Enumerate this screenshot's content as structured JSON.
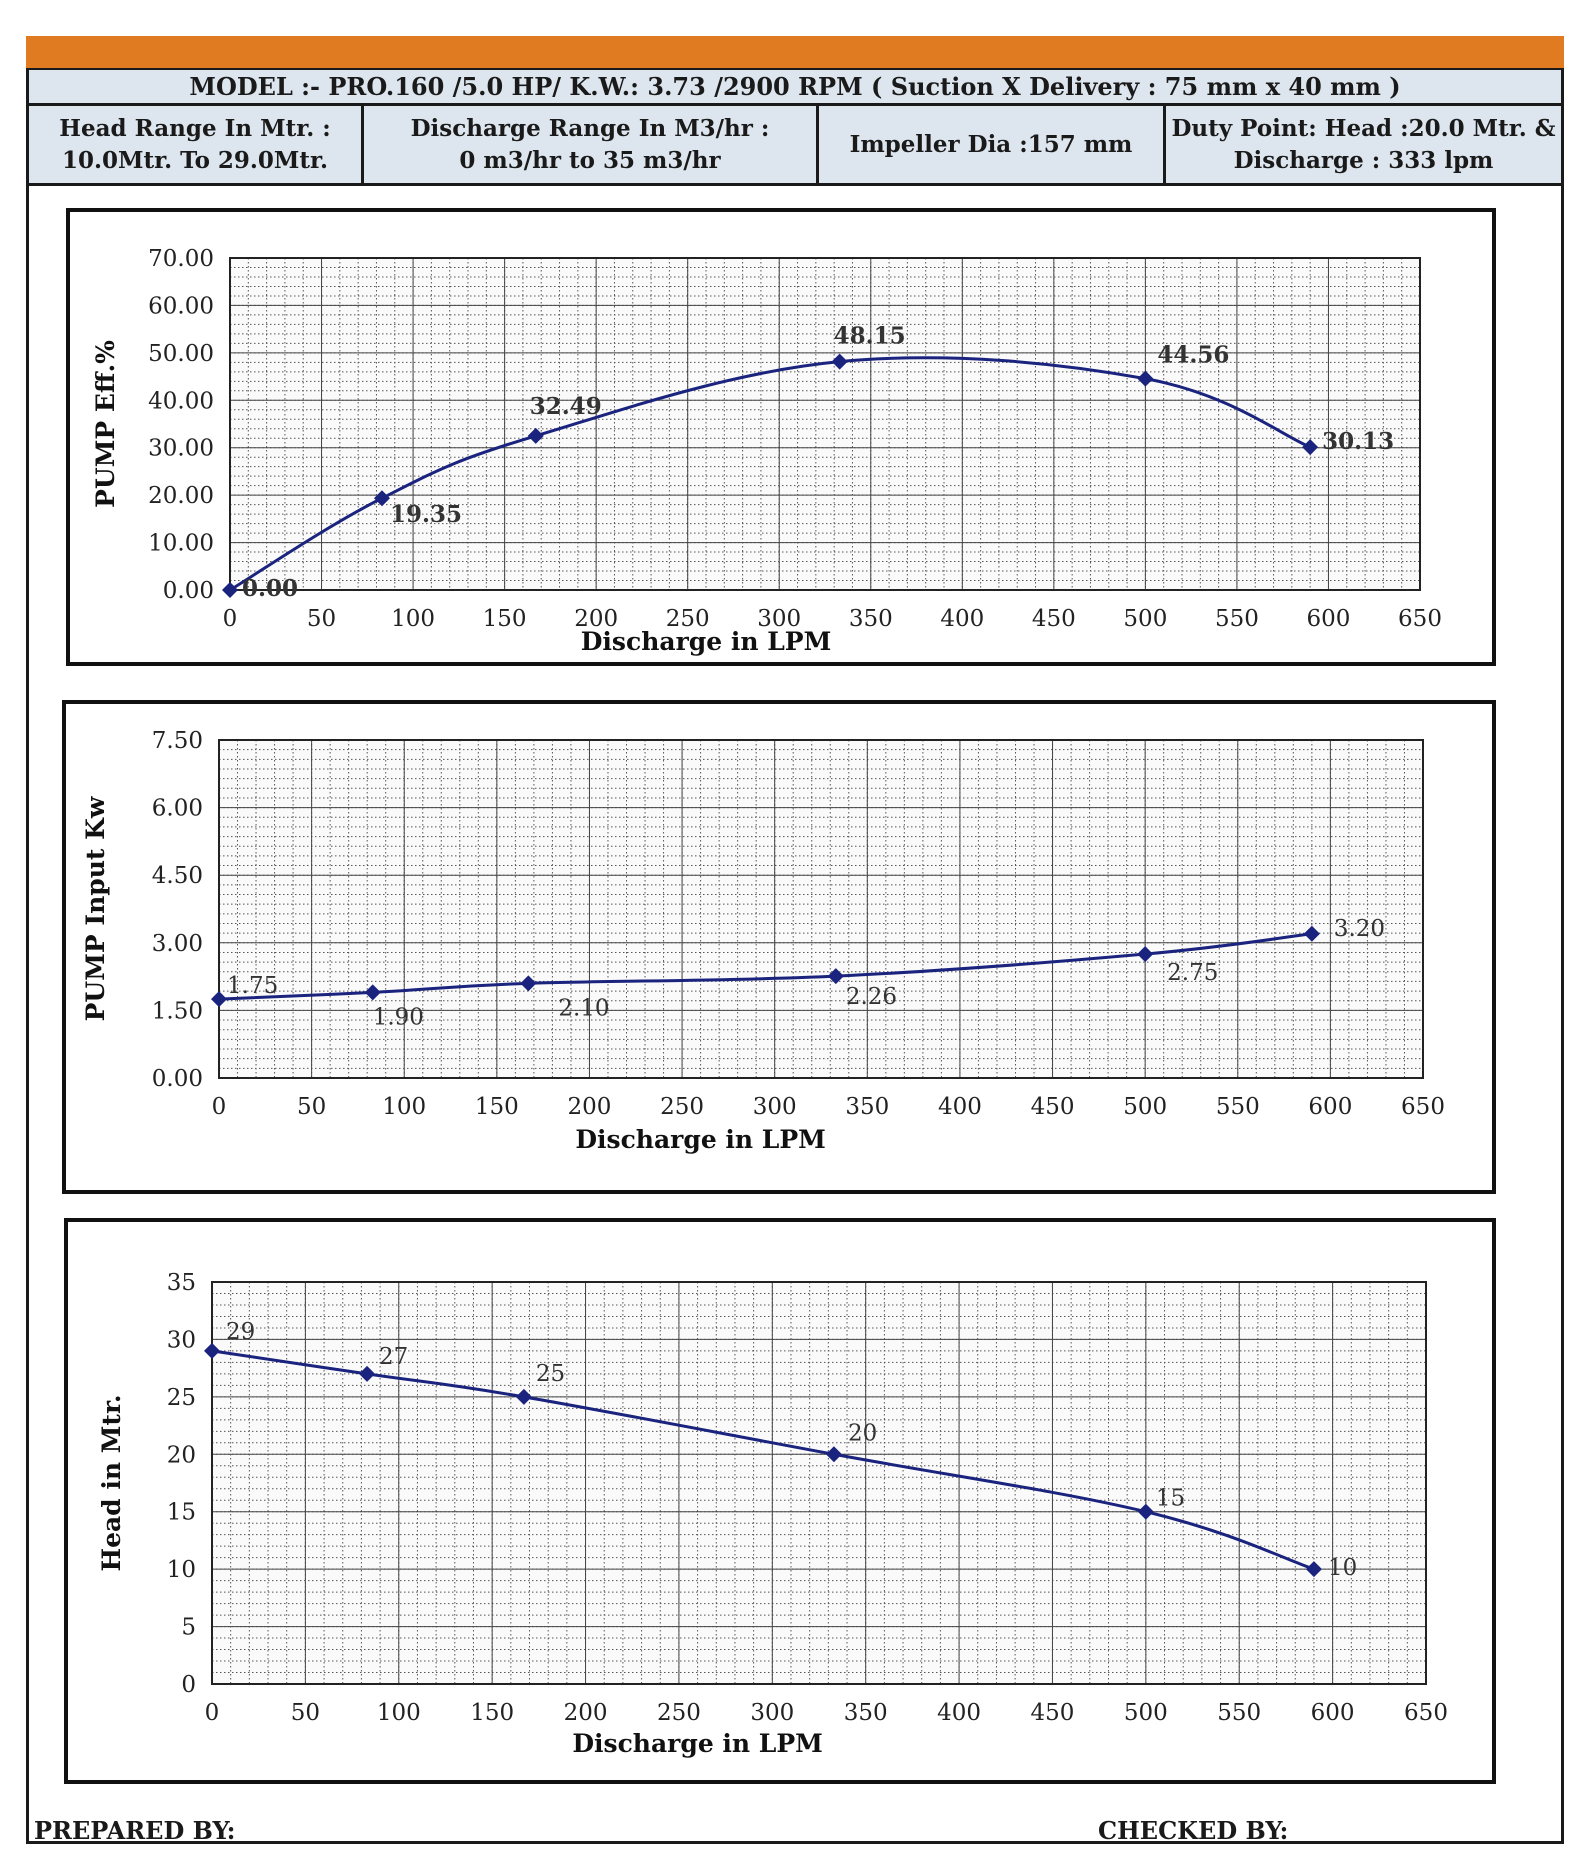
{
  "header": {
    "model_line": "MODEL :- PRO.160 /5.0 HP/ K.W.: 3.73 /2900 RPM (  Suction X Delivery : 75 mm x 40 mm )",
    "head_range_label": "Head Range In Mtr. :",
    "head_range_value": "10.0Mtr. To 29.0Mtr.",
    "discharge_range_label": "Discharge Range In M3/hr :",
    "discharge_range_value": "0 m3/hr to 35 m3/hr",
    "impeller": "Impeller Dia :157 mm",
    "duty_point_line1": "Duty Point: Head :20.0 Mtr. &",
    "duty_point_line2": "Discharge : 333 lpm",
    "accent_color": "#e07b21",
    "panel_color": "#dde6ee"
  },
  "footer": {
    "prepared_by": "PREPARED BY:",
    "checked_by": "CHECKED BY:"
  },
  "chart_data": [
    {
      "type": "line",
      "ylabel": "PUMP Eff.%",
      "xlabel": "Discharge in LPM",
      "x": [
        0,
        83,
        167,
        333,
        500,
        590
      ],
      "values": [
        0.0,
        19.35,
        32.49,
        48.15,
        44.56,
        30.13
      ],
      "data_labels": [
        "0.00",
        "19.35",
        "32.49",
        "48.15",
        "44.56",
        "30.13"
      ],
      "xlim": [
        0,
        650
      ],
      "ylim": [
        0,
        70
      ],
      "x_ticks": [
        "0",
        "50",
        "100",
        "150",
        "200",
        "250",
        "300",
        "350",
        "400",
        "450",
        "500",
        "550",
        "600",
        "650"
      ],
      "y_ticks": [
        "0.00",
        "10.00",
        "20.00",
        "30.00",
        "40.00",
        "50.00",
        "60.00",
        "70.00"
      ],
      "grid": true,
      "color": "#1a237e"
    },
    {
      "type": "line",
      "ylabel": "PUMP  Input Kw",
      "xlabel": "Discharge in LPM",
      "x": [
        0,
        83,
        167,
        333,
        500,
        590
      ],
      "values": [
        1.75,
        1.9,
        2.1,
        2.26,
        2.75,
        3.2
      ],
      "data_labels": [
        "1.75",
        "1.90",
        "2.10",
        "2.26",
        "2.75",
        "3.20"
      ],
      "xlim": [
        0,
        650
      ],
      "ylim": [
        0,
        7.5
      ],
      "x_ticks": [
        "0",
        "50",
        "100",
        "150",
        "200",
        "250",
        "300",
        "350",
        "400",
        "450",
        "500",
        "550",
        "600",
        "650"
      ],
      "y_ticks": [
        "0.00",
        "1.50",
        "3.00",
        "4.50",
        "6.00",
        "7.50"
      ],
      "grid": true,
      "color": "#1a237e"
    },
    {
      "type": "line",
      "ylabel": "Head in Mtr.",
      "xlabel": "Discharge in LPM",
      "x": [
        0,
        83,
        167,
        333,
        500,
        590
      ],
      "values": [
        29,
        27,
        25,
        20,
        15,
        10
      ],
      "data_labels": [
        "29",
        "27",
        "25",
        "20",
        "15",
        "10"
      ],
      "xlim": [
        0,
        650
      ],
      "ylim": [
        0,
        35
      ],
      "x_ticks": [
        "0",
        "50",
        "100",
        "150",
        "200",
        "250",
        "300",
        "350",
        "400",
        "450",
        "500",
        "550",
        "600",
        "650"
      ],
      "y_ticks": [
        "0",
        "5",
        "10",
        "15",
        "20",
        "25",
        "30",
        "35"
      ],
      "grid": true,
      "color": "#1a237e"
    }
  ]
}
